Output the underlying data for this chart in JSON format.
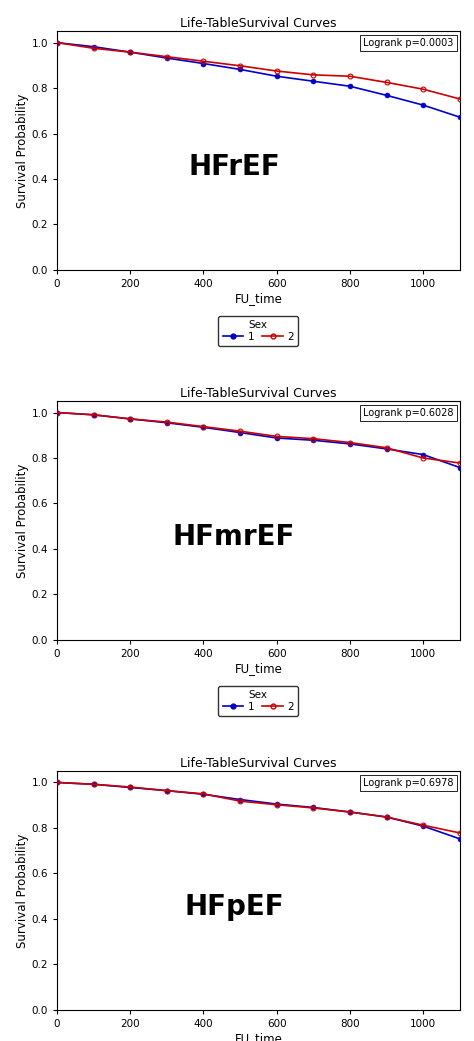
{
  "panels": [
    {
      "title": "Life-TableSurvival Curves",
      "label": "HFrEF",
      "logrank": "Logrank p=0.0003",
      "sex1_x": [
        0,
        100,
        200,
        300,
        400,
        500,
        600,
        700,
        800,
        900,
        1000,
        1100
      ],
      "sex1_y": [
        1.0,
        0.982,
        0.958,
        0.932,
        0.908,
        0.882,
        0.852,
        0.83,
        0.808,
        0.768,
        0.725,
        0.672
      ],
      "sex2_x": [
        0,
        100,
        200,
        300,
        400,
        500,
        600,
        700,
        800,
        900,
        1000,
        1100
      ],
      "sex2_y": [
        1.0,
        0.975,
        0.958,
        0.938,
        0.918,
        0.898,
        0.875,
        0.858,
        0.852,
        0.825,
        0.795,
        0.752
      ]
    },
    {
      "title": "Life-TableSurvival Curves",
      "label": "HFmrEF",
      "logrank": "Logrank p=0.6028",
      "sex1_x": [
        0,
        100,
        200,
        300,
        400,
        500,
        600,
        700,
        800,
        900,
        1000,
        1100
      ],
      "sex1_y": [
        1.0,
        0.99,
        0.972,
        0.955,
        0.935,
        0.912,
        0.888,
        0.878,
        0.862,
        0.84,
        0.815,
        0.758
      ],
      "sex2_x": [
        0,
        100,
        200,
        300,
        400,
        500,
        600,
        700,
        800,
        900,
        1000,
        1100
      ],
      "sex2_y": [
        1.0,
        0.99,
        0.972,
        0.958,
        0.938,
        0.918,
        0.895,
        0.885,
        0.868,
        0.845,
        0.8,
        0.778
      ]
    },
    {
      "title": "Life-TableSurvival Curves",
      "label": "HFpEF",
      "logrank": "Logrank p=0.6978",
      "sex1_x": [
        0,
        100,
        200,
        300,
        400,
        500,
        600,
        700,
        800,
        900,
        1000,
        1100
      ],
      "sex1_y": [
        1.0,
        0.992,
        0.978,
        0.964,
        0.948,
        0.925,
        0.905,
        0.89,
        0.87,
        0.848,
        0.808,
        0.752
      ],
      "sex2_x": [
        0,
        100,
        200,
        300,
        400,
        500,
        600,
        700,
        800,
        900,
        1000,
        1100
      ],
      "sex2_y": [
        1.0,
        0.992,
        0.98,
        0.964,
        0.95,
        0.918,
        0.902,
        0.888,
        0.87,
        0.848,
        0.812,
        0.778
      ]
    }
  ],
  "xlabel": "FU_time",
  "ylabel": "Survival Probability",
  "xlim": [
    0,
    1100
  ],
  "ylim": [
    0.0,
    1.05
  ],
  "xticks": [
    0,
    200,
    400,
    600,
    800,
    1000
  ],
  "yticks": [
    0.0,
    0.2,
    0.4,
    0.6,
    0.8,
    1.0
  ],
  "color_sex1": "#0000CC",
  "color_sex2": "#CC0000",
  "bg_color": "#FFFFFF",
  "outer_bg": "#EEEEEE",
  "title_fontsize": 9,
  "label_fontsize": 20,
  "axis_fontsize": 8,
  "tick_fontsize": 7.5,
  "logrank_fontsize": 7,
  "legend_title": "Sex",
  "legend_labels": [
    "1",
    "2"
  ]
}
